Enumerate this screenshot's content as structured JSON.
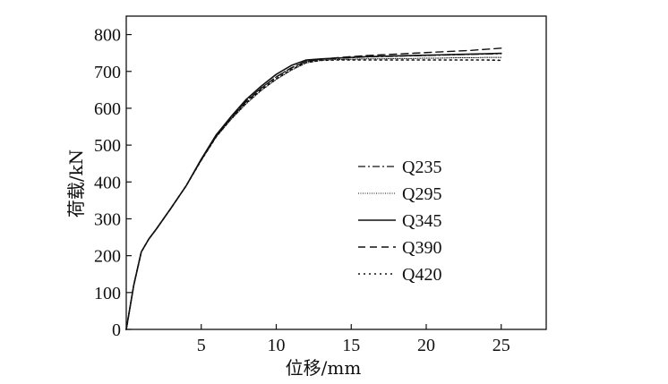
{
  "chart_data": {
    "type": "line",
    "title": "",
    "xlabel": "位移/mm",
    "ylabel": "荷载/kN",
    "xlim": [
      0,
      28
    ],
    "ylim": [
      0,
      850
    ],
    "x_ticks": [
      5,
      10,
      15,
      20,
      25
    ],
    "y_ticks": [
      0,
      100,
      200,
      300,
      400,
      500,
      600,
      700,
      800
    ],
    "x_tick_labels": [
      "5",
      "10",
      "15",
      "20",
      "25"
    ],
    "y_tick_labels": [
      "0",
      "100",
      "200",
      "300",
      "400",
      "500",
      "600",
      "700",
      "800"
    ],
    "grid": false,
    "legend_position": "center-right",
    "series": [
      {
        "name": "Q235",
        "style": "dashdot",
        "color": "#111111",
        "x": [
          0,
          0.5,
          1,
          1.5,
          2,
          3,
          4,
          5,
          6,
          7,
          8,
          9,
          10,
          11,
          12,
          13,
          14,
          15,
          16,
          17,
          18,
          19,
          20,
          21,
          22,
          23,
          24,
          25
        ],
        "y": [
          0,
          120,
          210,
          245,
          272,
          330,
          390,
          460,
          525,
          575,
          620,
          655,
          685,
          710,
          728,
          733,
          735,
          737,
          739,
          740,
          741,
          742,
          743,
          744,
          745,
          746,
          747,
          748
        ]
      },
      {
        "name": "Q295",
        "style": "dotted-fine",
        "color": "#111111",
        "x": [
          0,
          0.5,
          1,
          1.5,
          2,
          3,
          4,
          5,
          6,
          7,
          8,
          9,
          10,
          11,
          12,
          13,
          14,
          15,
          16,
          17,
          18,
          19,
          20,
          21,
          22,
          23,
          24,
          25
        ],
        "y": [
          0,
          120,
          210,
          245,
          272,
          330,
          390,
          458,
          522,
          570,
          612,
          648,
          678,
          703,
          723,
          730,
          732,
          733,
          734,
          734,
          735,
          735,
          736,
          736,
          737,
          737,
          738,
          738
        ]
      },
      {
        "name": "Q345",
        "style": "solid",
        "color": "#111111",
        "x": [
          0,
          0.5,
          1,
          1.5,
          2,
          3,
          4,
          5,
          6,
          7,
          8,
          9,
          10,
          11,
          12,
          13,
          14,
          15,
          16,
          17,
          18,
          19,
          20,
          21,
          22,
          23,
          24,
          25
        ],
        "y": [
          0,
          120,
          210,
          245,
          272,
          330,
          390,
          462,
          528,
          578,
          624,
          660,
          692,
          716,
          731,
          734,
          736,
          738,
          740,
          741,
          742,
          743,
          744,
          745,
          746,
          747,
          748,
          749
        ]
      },
      {
        "name": "Q390",
        "style": "dashed",
        "color": "#111111",
        "x": [
          0,
          0.5,
          1,
          1.5,
          2,
          3,
          4,
          5,
          6,
          7,
          8,
          9,
          10,
          11,
          12,
          13,
          14,
          15,
          16,
          17,
          18,
          19,
          20,
          21,
          22,
          23,
          24,
          25
        ],
        "y": [
          0,
          120,
          210,
          245,
          272,
          330,
          390,
          460,
          525,
          574,
          618,
          654,
          685,
          709,
          727,
          733,
          737,
          740,
          743,
          745,
          747,
          749,
          751,
          753,
          755,
          757,
          760,
          763
        ]
      },
      {
        "name": "Q420",
        "style": "dotted",
        "color": "#111111",
        "x": [
          0,
          0.5,
          1,
          1.5,
          2,
          3,
          4,
          5,
          6,
          7,
          8,
          9,
          10,
          11,
          12,
          13,
          14,
          15,
          16,
          17,
          18,
          19,
          20,
          21,
          22,
          23,
          24,
          25
        ],
        "y": [
          0,
          120,
          210,
          245,
          272,
          330,
          390,
          459,
          523,
          572,
          615,
          650,
          680,
          705,
          724,
          730,
          731,
          731,
          731,
          731,
          731,
          731,
          731,
          731,
          731,
          731,
          731,
          730
        ]
      }
    ]
  }
}
